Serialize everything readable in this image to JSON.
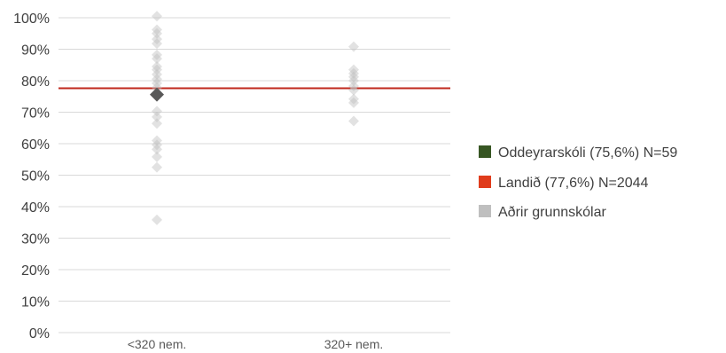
{
  "chart_data": {
    "type": "scatter",
    "categories": [
      "<320 nem.",
      "320+ nem."
    ],
    "y_ticks": [
      "0%",
      "10%",
      "20%",
      "30%",
      "40%",
      "50%",
      "60%",
      "70%",
      "80%",
      "90%",
      "100%"
    ],
    "ylim": [
      0,
      100
    ],
    "grid": true,
    "legend_position": "right",
    "reference_line": {
      "name": "Landið (77,6%) N=2044",
      "value": 77.6,
      "color": "#c0281d"
    },
    "series": [
      {
        "name": "Aðrir grunnskólar",
        "color": "#bfbfbf",
        "points": [
          {
            "x": "<320 nem.",
            "y": 100.5
          },
          {
            "x": "<320 nem.",
            "y": 96.2
          },
          {
            "x": "<320 nem.",
            "y": 95.0
          },
          {
            "x": "<320 nem.",
            "y": 93.2
          },
          {
            "x": "<320 nem.",
            "y": 91.8
          },
          {
            "x": "<320 nem.",
            "y": 88.2
          },
          {
            "x": "<320 nem.",
            "y": 87.0
          },
          {
            "x": "<320 nem.",
            "y": 84.5
          },
          {
            "x": "<320 nem.",
            "y": 83.5
          },
          {
            "x": "<320 nem.",
            "y": 82.0
          },
          {
            "x": "<320 nem.",
            "y": 80.5
          },
          {
            "x": "<320 nem.",
            "y": 79.2
          },
          {
            "x": "<320 nem.",
            "y": 77.8
          },
          {
            "x": "<320 nem.",
            "y": 70.3
          },
          {
            "x": "<320 nem.",
            "y": 68.5
          },
          {
            "x": "<320 nem.",
            "y": 66.4
          },
          {
            "x": "<320 nem.",
            "y": 61.0
          },
          {
            "x": "<320 nem.",
            "y": 59.6
          },
          {
            "x": "<320 nem.",
            "y": 58.2
          },
          {
            "x": "<320 nem.",
            "y": 55.8
          },
          {
            "x": "<320 nem.",
            "y": 52.5
          },
          {
            "x": "<320 nem.",
            "y": 35.8
          },
          {
            "x": "320+ nem.",
            "y": 90.8
          },
          {
            "x": "320+ nem.",
            "y": 83.5
          },
          {
            "x": "320+ nem.",
            "y": 82.3
          },
          {
            "x": "320+ nem.",
            "y": 81.2
          },
          {
            "x": "320+ nem.",
            "y": 80.0
          },
          {
            "x": "320+ nem.",
            "y": 78.3
          },
          {
            "x": "320+ nem.",
            "y": 77.0
          },
          {
            "x": "320+ nem.",
            "y": 74.2
          },
          {
            "x": "320+ nem.",
            "y": 73.0
          },
          {
            "x": "320+ nem.",
            "y": 67.2
          }
        ]
      },
      {
        "name": "Oddeyrarskóli (75,6%) N=59",
        "color": "#595959",
        "points": [
          {
            "x": "<320 nem.",
            "y": 75.6
          }
        ]
      }
    ],
    "legend": [
      {
        "label": "Oddeyrarskóli (75,6%) N=59",
        "color": "#375623"
      },
      {
        "label": "Landið (77,6%) N=2044",
        "color": "#e03c1c"
      },
      {
        "label": "Aðrir grunnskólar",
        "color": "#bfbfbf"
      }
    ]
  }
}
